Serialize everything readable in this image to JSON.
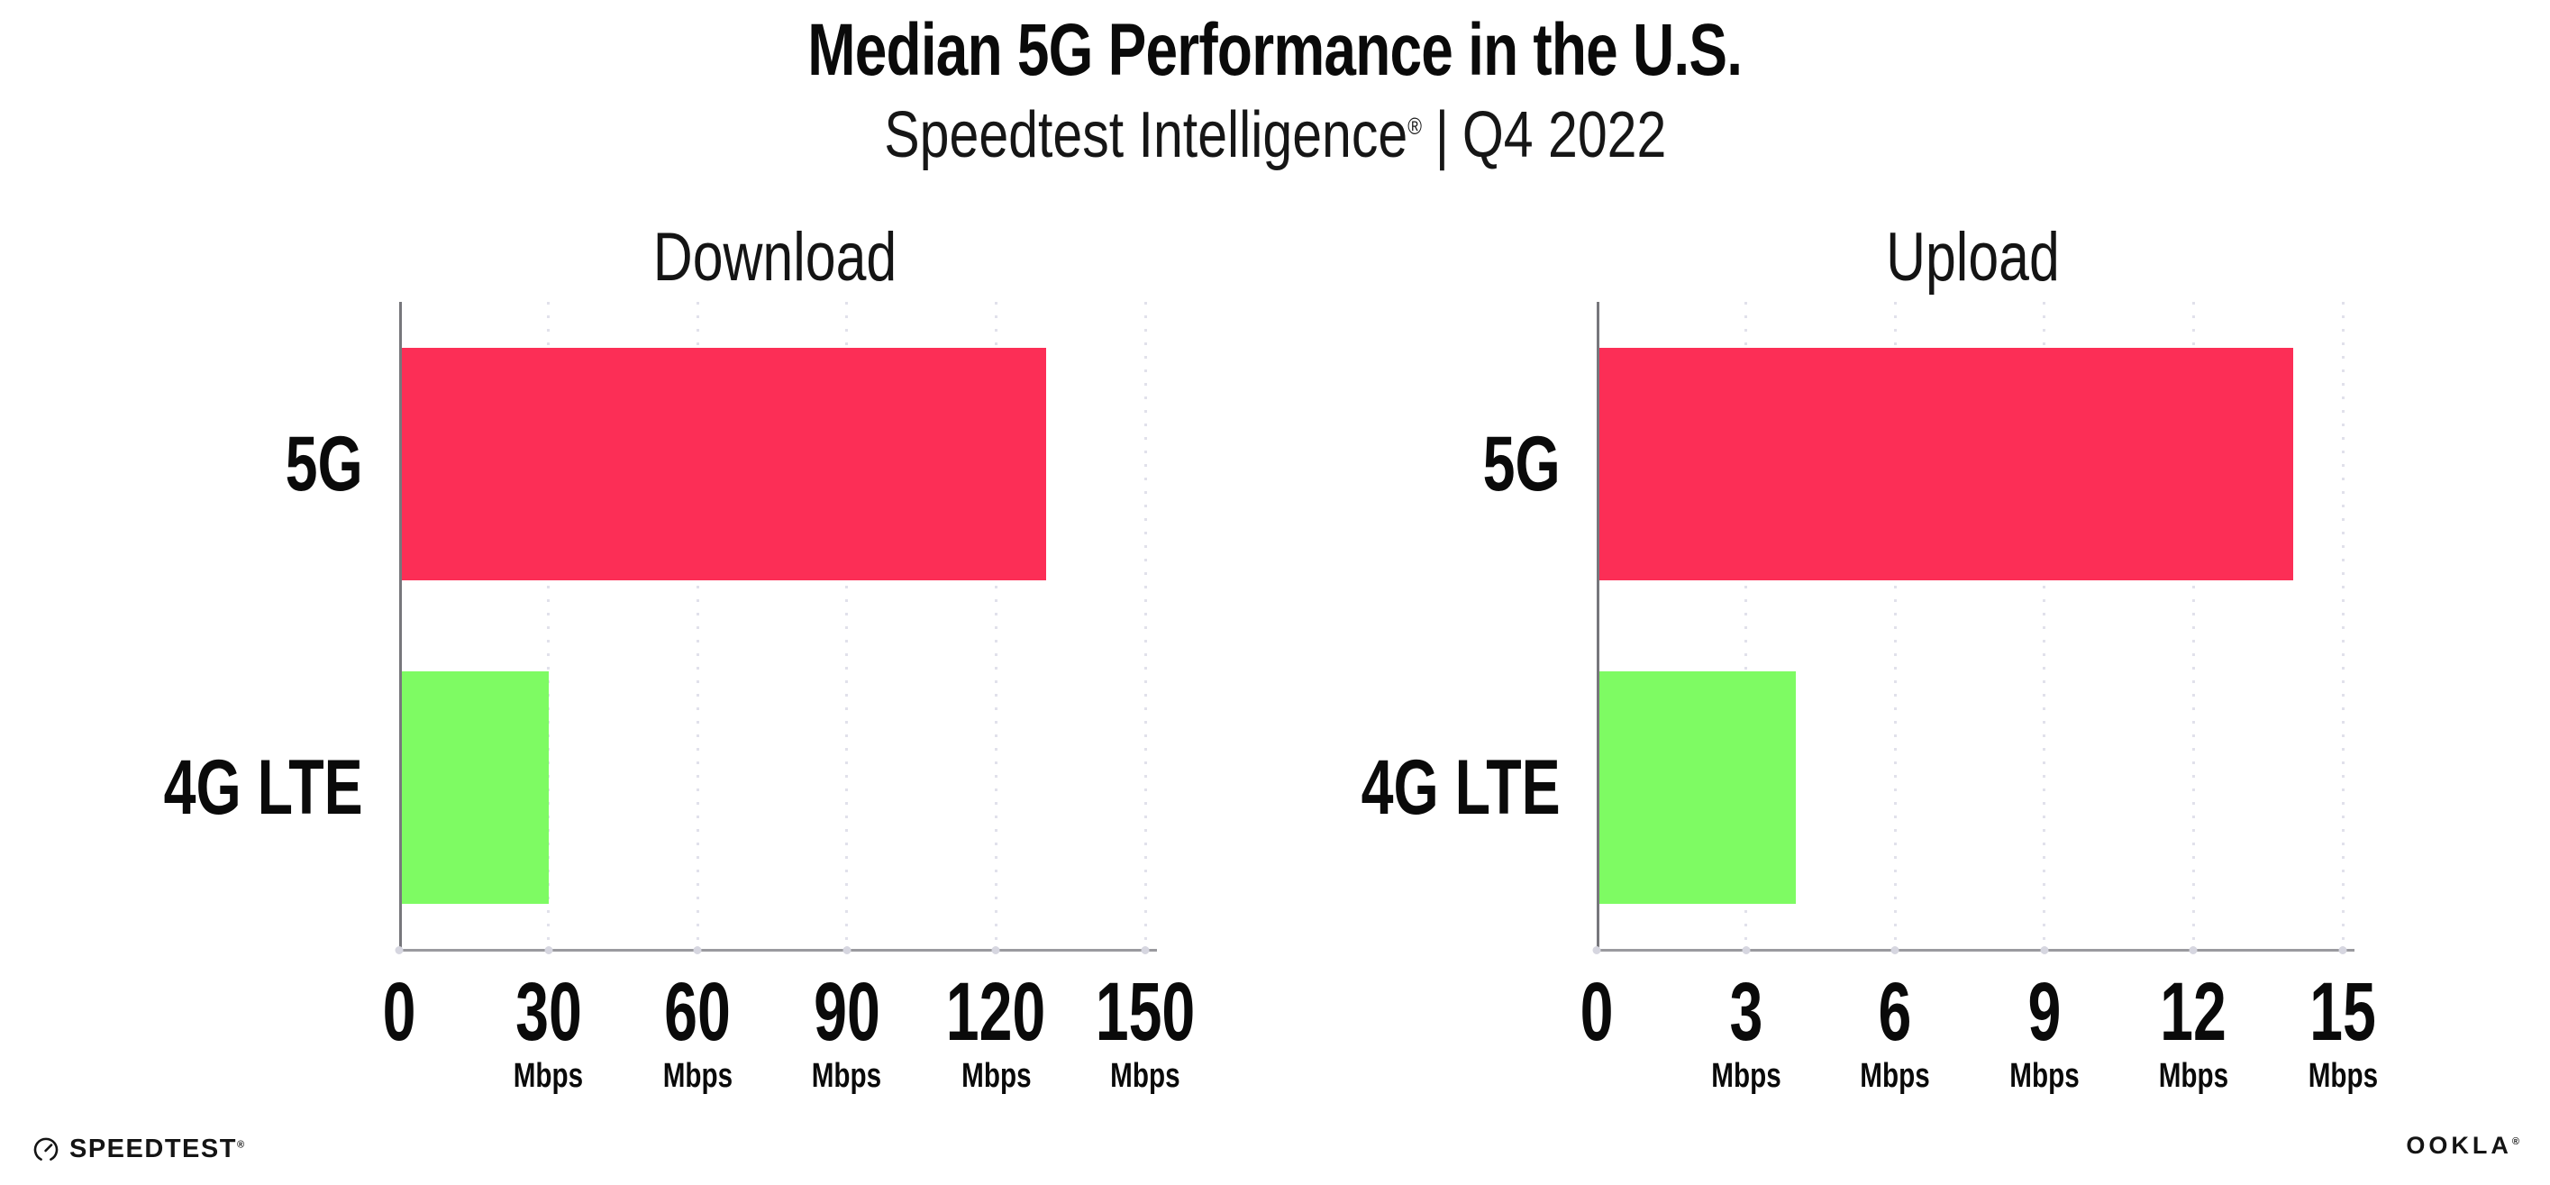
{
  "header": {
    "title": "Median 5G Performance in the U.S.",
    "subtitle": {
      "brand": "Speedtest Intelligence",
      "reg": "®",
      "divider": "|",
      "period": "Q4 2022"
    }
  },
  "chart_data": [
    {
      "type": "bar",
      "orientation": "horizontal",
      "title": "Download",
      "categories": [
        "5G",
        "4G LTE"
      ],
      "values": [
        130,
        30
      ],
      "unit": "Mbps",
      "xlim": [
        0,
        150
      ],
      "xticks": [
        0,
        30,
        60,
        90,
        120,
        150
      ],
      "tick_unit": "Mbps",
      "bar_colors": [
        "#FC2E56",
        "#7EFB63"
      ],
      "grid": "dotted-vertical",
      "legend": "none"
    },
    {
      "type": "bar",
      "orientation": "horizontal",
      "title": "Upload",
      "categories": [
        "5G",
        "4G LTE"
      ],
      "values": [
        14,
        4
      ],
      "unit": "Mbps",
      "xlim": [
        0,
        15
      ],
      "xticks": [
        0,
        3,
        6,
        9,
        12,
        15
      ],
      "tick_unit": "Mbps",
      "bar_colors": [
        "#FC2E56",
        "#7EFB63"
      ],
      "grid": "dotted-vertical",
      "legend": "none"
    }
  ],
  "colors": {
    "bar_5g": "#FC2E56",
    "bar_4g_lte": "#7EFB63",
    "axis": "#9A9A9F",
    "gridline": "#E1E1EB",
    "text": "#0A0A0A"
  },
  "footer": {
    "speedtest": {
      "label": "SPEEDTEST",
      "reg": "®"
    },
    "ookla": {
      "label": "OOKLA",
      "reg": "®"
    }
  }
}
